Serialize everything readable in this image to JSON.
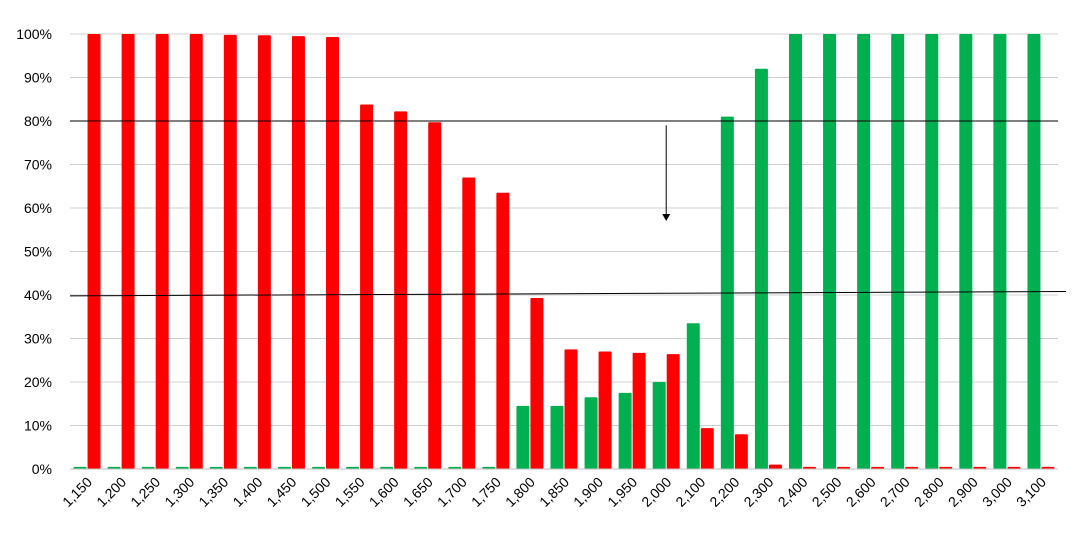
{
  "chart_data": {
    "type": "bar",
    "categories": [
      "1,150",
      "1,200",
      "1,250",
      "1,300",
      "1,350",
      "1,400",
      "1,450",
      "1,500",
      "1,550",
      "1,600",
      "1,650",
      "1,700",
      "1,750",
      "1,800",
      "1,850",
      "1,900",
      "1,950",
      "2,000",
      "2,100",
      "2,200",
      "2,300",
      "2,400",
      "2,500",
      "2,600",
      "2,700",
      "2,800",
      "2,900",
      "3,000",
      "3,100"
    ],
    "series": [
      {
        "color": "#00b050",
        "values": [
          0.5,
          0.5,
          0.5,
          0.5,
          0.5,
          0.5,
          0.5,
          0.5,
          0.5,
          0.5,
          0.5,
          0.5,
          0.5,
          14.5,
          14.5,
          16.5,
          17.5,
          20,
          33.5,
          81,
          92,
          100,
          100,
          100,
          100,
          100,
          100,
          100,
          100
        ]
      },
      {
        "color": "#ff0000",
        "values": [
          100,
          100,
          100,
          100,
          99.8,
          99.7,
          99.5,
          99.3,
          83.8,
          82.2,
          79.7,
          67,
          63.5,
          39.3,
          27.5,
          27,
          26.7,
          26.4,
          9.4,
          8,
          1,
          0.5,
          0.5,
          0.5,
          0.5,
          0.5,
          0.5,
          0.5,
          0.5
        ]
      }
    ],
    "ylim": [
      0,
      100
    ],
    "yticks": [
      0,
      10,
      20,
      30,
      40,
      50,
      60,
      70,
      80,
      90,
      100
    ],
    "ytick_labels": [
      "0%",
      "10%",
      "20%",
      "30%",
      "40%",
      "50%",
      "60%",
      "70%",
      "80%",
      "90%",
      "100%"
    ],
    "grid": true,
    "reference_lines": [
      {
        "type": "horizontal",
        "y": 80,
        "color": "#000000"
      },
      {
        "type": "sloped",
        "y_start": 39.8,
        "y_end": 40.8,
        "color": "#000000"
      }
    ],
    "annotation": {
      "type": "arrow-down",
      "category_index": 17,
      "y_from": 79,
      "y_to": 57
    }
  }
}
